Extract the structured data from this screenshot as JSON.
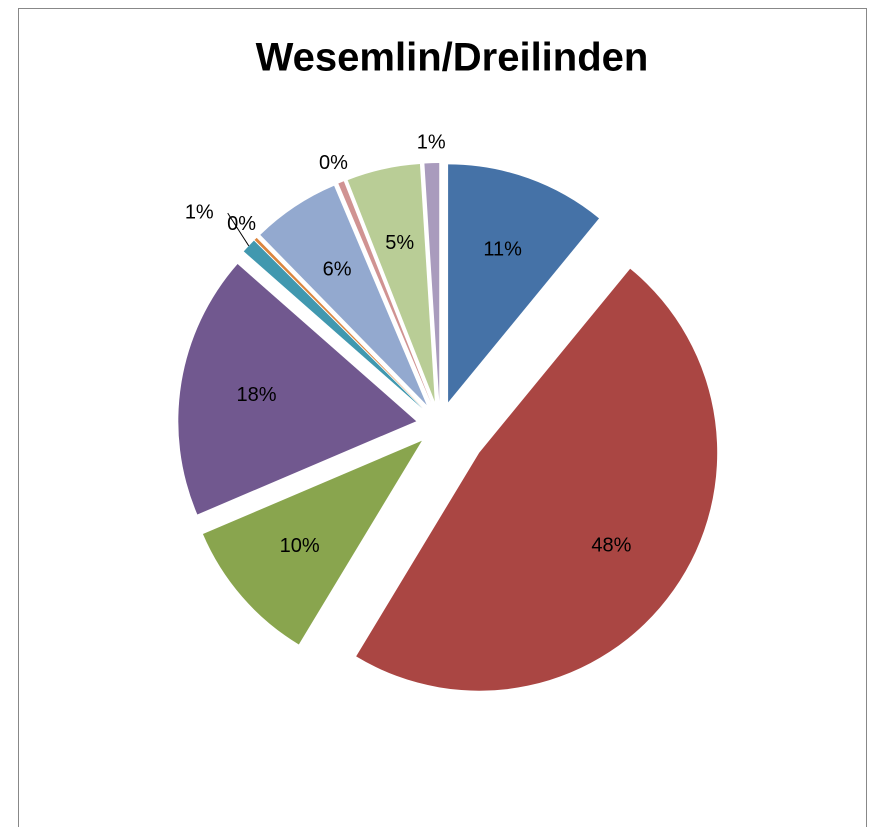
{
  "chart_data": {
    "type": "pie",
    "title": "Wesemlin/Dreilinden",
    "values": [
      11,
      48,
      10,
      18,
      1,
      0.2,
      6,
      0.4,
      5,
      1
    ],
    "value_labels": [
      "11%",
      "48%",
      "10%",
      "18%",
      "1%",
      "0%",
      "6%",
      "0%",
      "5%",
      "1%"
    ],
    "colors": [
      "#4572a7",
      "#aa4643",
      "#89a54e",
      "#71588f",
      "#4198af",
      "#db843d",
      "#93a9cf",
      "#d09392",
      "#b9cd96",
      "#a99bbd"
    ]
  }
}
